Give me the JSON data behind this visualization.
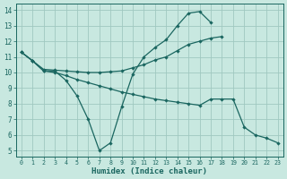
{
  "xlabel": "Humidex (Indice chaleur)",
  "xlim": [
    -0.5,
    23.5
  ],
  "ylim": [
    4.6,
    14.4
  ],
  "xticks": [
    0,
    1,
    2,
    3,
    4,
    5,
    6,
    7,
    8,
    9,
    10,
    11,
    12,
    13,
    14,
    15,
    16,
    17,
    18,
    19,
    20,
    21,
    22,
    23
  ],
  "yticks": [
    5,
    6,
    7,
    8,
    9,
    10,
    11,
    12,
    13,
    14
  ],
  "bg_color": "#c8e8e0",
  "grid_color": "#a0c8c0",
  "line_color": "#1a6660",
  "curve1_x": [
    0,
    1,
    2,
    3,
    4,
    5,
    6,
    7,
    8,
    9,
    10,
    11,
    12,
    13,
    14,
    15,
    16,
    17
  ],
  "curve1_y": [
    11.3,
    10.75,
    10.1,
    10.1,
    9.5,
    8.5,
    7.0,
    5.0,
    5.5,
    7.8,
    9.9,
    11.0,
    11.6,
    12.1,
    13.0,
    13.8,
    13.9,
    13.2
  ],
  "curve2_x": [
    0,
    1,
    2,
    3,
    4,
    5,
    6,
    7,
    8,
    9,
    10,
    11,
    12,
    13,
    14,
    15,
    16,
    17,
    18
  ],
  "curve2_y": [
    11.3,
    10.75,
    10.2,
    10.15,
    10.1,
    10.05,
    10.0,
    10.0,
    10.05,
    10.1,
    10.3,
    10.5,
    10.8,
    11.0,
    11.4,
    11.8,
    12.0,
    12.2,
    12.3
  ],
  "curve3_x": [
    0,
    1,
    2,
    3,
    4,
    5,
    6,
    7,
    8,
    9,
    10,
    11,
    12,
    13,
    14,
    15,
    16,
    17,
    18,
    19,
    20,
    21,
    22,
    23
  ],
  "curve3_y": [
    11.3,
    10.75,
    10.1,
    10.0,
    9.8,
    9.55,
    9.35,
    9.15,
    8.95,
    8.75,
    8.6,
    8.45,
    8.3,
    8.2,
    8.1,
    8.0,
    7.9,
    8.3,
    8.3,
    8.3,
    6.5,
    6.0,
    5.8,
    5.5
  ]
}
